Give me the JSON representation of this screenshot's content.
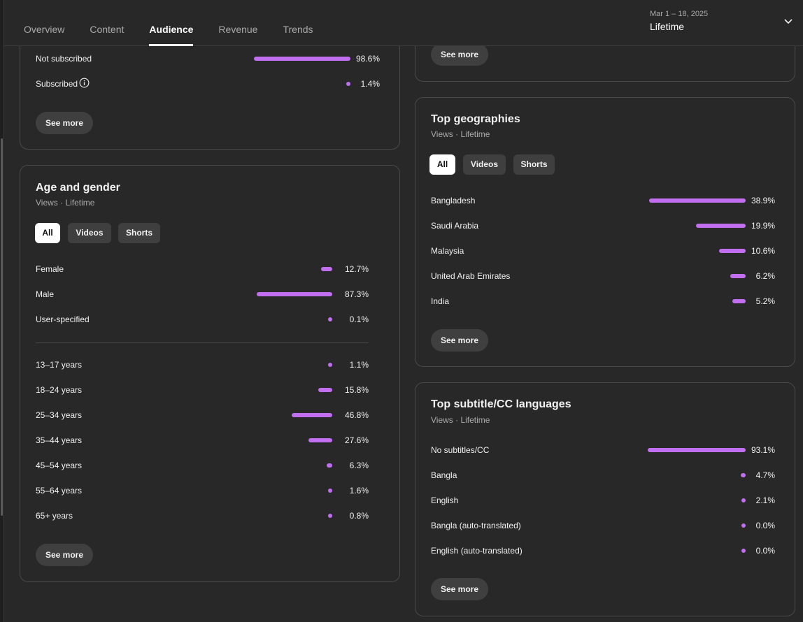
{
  "header": {
    "tabs": [
      {
        "label": "Overview"
      },
      {
        "label": "Content"
      },
      {
        "label": "Audience"
      },
      {
        "label": "Revenue"
      },
      {
        "label": "Trends"
      }
    ],
    "active_tab": "Audience",
    "date_range": "Mar 1 – 18, 2025",
    "period": "Lifetime"
  },
  "subscription": {
    "rows": [
      {
        "label": "Not subscribed",
        "value": "98.6%",
        "fraction": 0.986
      },
      {
        "label": "Subscribed",
        "value": "1.4%",
        "fraction": 0.014
      }
    ],
    "see_more": "See more"
  },
  "top_right": {
    "see_more": "See more"
  },
  "age_gender": {
    "title": "Age and gender",
    "subtitle": "Views · Lifetime",
    "chips": [
      "All",
      "Videos",
      "Shorts"
    ],
    "gender": [
      {
        "label": "Female",
        "value": "12.7%",
        "fraction": 0.127
      },
      {
        "label": "Male",
        "value": "87.3%",
        "fraction": 0.873
      },
      {
        "label": "User-specified",
        "value": "0.1%",
        "fraction": 0.001
      }
    ],
    "ages": [
      {
        "label": "13–17 years",
        "value": "1.1%",
        "fraction": 0.011
      },
      {
        "label": "18–24 years",
        "value": "15.8%",
        "fraction": 0.158
      },
      {
        "label": "25–34 years",
        "value": "46.8%",
        "fraction": 0.468
      },
      {
        "label": "35–44 years",
        "value": "27.6%",
        "fraction": 0.276
      },
      {
        "label": "45–54 years",
        "value": "6.3%",
        "fraction": 0.063
      },
      {
        "label": "55–64 years",
        "value": "1.6%",
        "fraction": 0.016
      },
      {
        "label": "65+ years",
        "value": "0.8%",
        "fraction": 0.008
      }
    ],
    "see_more": "See more"
  },
  "geographies": {
    "title": "Top geographies",
    "subtitle": "Views · Lifetime",
    "chips": [
      "All",
      "Videos",
      "Shorts"
    ],
    "rows": [
      {
        "label": "Bangladesh",
        "value": "38.9%",
        "fraction": 0.389
      },
      {
        "label": "Saudi Arabia",
        "value": "19.9%",
        "fraction": 0.199
      },
      {
        "label": "Malaysia",
        "value": "10.6%",
        "fraction": 0.106
      },
      {
        "label": "United Arab Emirates",
        "value": "6.2%",
        "fraction": 0.062
      },
      {
        "label": "India",
        "value": "5.2%",
        "fraction": 0.052
      }
    ],
    "see_more": "See more"
  },
  "subtitles": {
    "title": "Top subtitle/CC languages",
    "subtitle": "Views · Lifetime",
    "rows": [
      {
        "label": "No subtitles/CC",
        "value": "93.1%",
        "fraction": 0.931
      },
      {
        "label": "Bangla",
        "value": "4.7%",
        "fraction": 0.047
      },
      {
        "label": "English",
        "value": "2.1%",
        "fraction": 0.021
      },
      {
        "label": "Bangla (auto-translated)",
        "value": "0.0%",
        "fraction": 0.0
      },
      {
        "label": "English (auto-translated)",
        "value": "0.0%",
        "fraction": 0.0
      }
    ],
    "see_more": "See more"
  },
  "colors": {
    "bar": "#c16ef0",
    "background": "#282828"
  }
}
